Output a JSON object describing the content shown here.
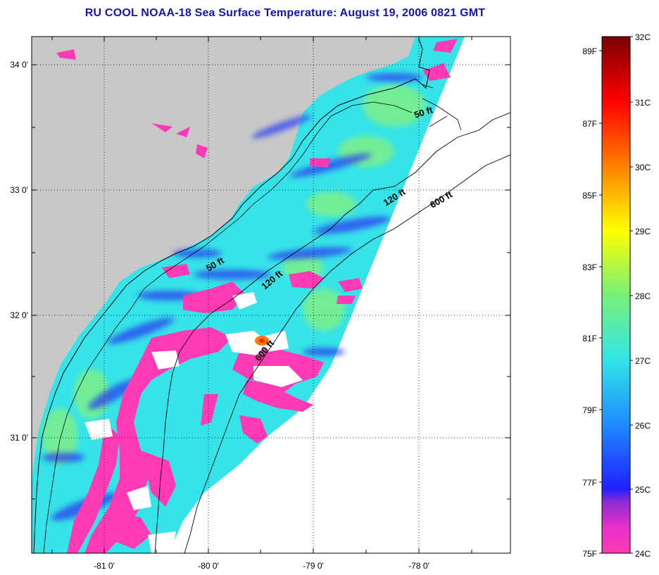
{
  "title": "RU COOL  NOAA-18  Sea Surface Temperature:  August 19, 2006 0821 GMT",
  "axes": {
    "lat_labels": [
      "34 0'",
      "33 0'",
      "32 0'",
      "31 0'"
    ],
    "lon_labels": [
      "-81 0'",
      "-80 0'",
      "-79 0'",
      "-78 0'"
    ]
  },
  "contours": {
    "labels": [
      "50 ft",
      "120 ft",
      "600 ft",
      "50 ft",
      "120 ft",
      "600 ft"
    ]
  },
  "colorbar": {
    "celsius": [
      "32C",
      "31C",
      "30C",
      "29C",
      "28C",
      "27C",
      "26C",
      "25C",
      "24C"
    ],
    "fahrenheit": [
      "89F",
      "87F",
      "85F",
      "83F",
      "81F",
      "79F",
      "77F",
      "75F"
    ]
  },
  "colors": {
    "title": "#1414b4",
    "land": "#c8c8c8",
    "no_data": "#ffffff",
    "sst_24C": "#ff3ab4",
    "sst_25C": "#2828ff",
    "sst_27C": "#32e6e6",
    "sst_28C": "#80ff50",
    "sst_29C": "#ffff00",
    "sst_30C": "#ff8000",
    "sst_32C": "#7a0000"
  }
}
